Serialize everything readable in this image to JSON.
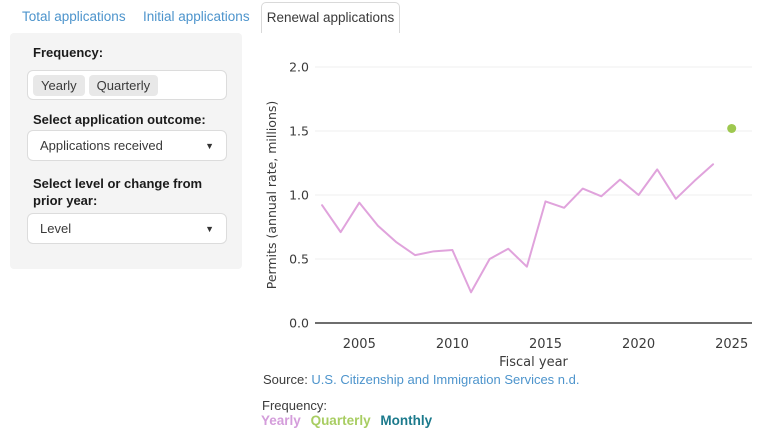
{
  "tabs": [
    {
      "label": "Total applications",
      "active": false
    },
    {
      "label": "Initial applications",
      "active": false
    },
    {
      "label": "Renewal applications",
      "active": true
    }
  ],
  "sidebar": {
    "frequency_label": "Frequency:",
    "frequency_options": [
      "Yearly",
      "Quarterly"
    ],
    "outcome_label": "Select application outcome:",
    "outcome_value": "Applications received",
    "level_label": "Select level or change from prior year:",
    "level_value": "Level"
  },
  "chart_data": {
    "type": "line",
    "title": "",
    "xlabel": "Fiscal year",
    "ylabel": "Permits (annual rate, millions)",
    "x_ticks": [
      2005,
      2010,
      2015,
      2020,
      2025
    ],
    "y_ticks": [
      0.0,
      0.5,
      1.0,
      1.5,
      2.0
    ],
    "xlim": [
      2002.5,
      2026
    ],
    "ylim": [
      0.0,
      2.0
    ],
    "grid": "horizontal",
    "legend_position": "below",
    "series": [
      {
        "name": "Yearly",
        "style": "line",
        "color": "#e0a3dc",
        "x": [
          2003,
          2004,
          2005,
          2006,
          2007,
          2008,
          2009,
          2010,
          2011,
          2012,
          2013,
          2014,
          2015,
          2016,
          2017,
          2018,
          2019,
          2020,
          2021,
          2022,
          2023,
          2024
        ],
        "y": [
          0.92,
          0.71,
          0.94,
          0.76,
          0.63,
          0.53,
          0.56,
          0.57,
          0.24,
          0.5,
          0.58,
          0.44,
          0.95,
          0.9,
          1.05,
          0.99,
          1.12,
          1.0,
          1.2,
          0.97,
          1.11,
          1.24
        ]
      },
      {
        "name": "Quarterly",
        "style": "point",
        "color": "#9ec84f",
        "x": [
          2025
        ],
        "y": [
          1.52
        ]
      }
    ]
  },
  "source": {
    "prefix": "Source: ",
    "link": "U.S. Citizenship and Immigration Services n.d."
  },
  "frequency_legend": {
    "label": "Frequency:",
    "items": [
      {
        "label": "Yearly",
        "color": "#d49ddb"
      },
      {
        "label": "Quarterly",
        "color": "#a8cd62"
      },
      {
        "label": "Monthly",
        "color": "#1c7a8c"
      }
    ]
  },
  "colors": {
    "tab_link": "#4d94cc",
    "active_tab_text": "#3a3a3a",
    "sidebar_bg": "#f4f4f4",
    "line_pink": "#e0a3dc",
    "dot_green": "#9ec84f",
    "axis": "#3f3f3f",
    "gridline": "#efefef",
    "link_blue": "#4d94cc"
  }
}
